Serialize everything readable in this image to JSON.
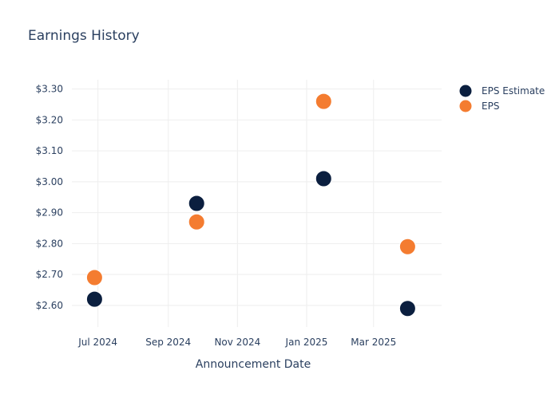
{
  "colors": {
    "estimate": "#0b1f3f",
    "actual": "#f47c30",
    "text": "#2a3f5f",
    "grid": "#eeeeee"
  },
  "chart_data": {
    "type": "scatter",
    "title": "Earnings History",
    "xlabel": "Announcement Date",
    "ylabel": "",
    "x_ticks": [
      "2024-07-01",
      "2024-09-01",
      "2024-11-01",
      "2025-01-01",
      "2025-03-01"
    ],
    "x_tick_labels": [
      "Jul 2024",
      "Sep 2024",
      "Nov 2024",
      "Jan 2025",
      "Mar 2025"
    ],
    "xlim": [
      "2024-06-08",
      "2025-04-30"
    ],
    "y_ticks": [
      2.6,
      2.7,
      2.8,
      2.9,
      3.0,
      3.1,
      3.2,
      3.3
    ],
    "y_tick_labels": [
      "$2.60",
      "$2.70",
      "$2.80",
      "$2.90",
      "$3.00",
      "$3.10",
      "$3.20",
      "$3.30"
    ],
    "ylim": [
      2.53,
      3.33
    ],
    "grid": true,
    "legend_position": "top-right",
    "series": [
      {
        "name": "EPS Estimate",
        "color": "#0b1f3f",
        "points": [
          {
            "x": "2024-06-28",
            "y": 2.62
          },
          {
            "x": "2024-09-26",
            "y": 2.93
          },
          {
            "x": "2025-01-16",
            "y": 3.01
          },
          {
            "x": "2025-03-31",
            "y": 2.59
          }
        ]
      },
      {
        "name": "EPS",
        "color": "#f47c30",
        "points": [
          {
            "x": "2024-06-28",
            "y": 2.69
          },
          {
            "x": "2024-09-26",
            "y": 2.87
          },
          {
            "x": "2025-01-16",
            "y": 3.26
          },
          {
            "x": "2025-03-31",
            "y": 2.79
          }
        ]
      }
    ]
  }
}
